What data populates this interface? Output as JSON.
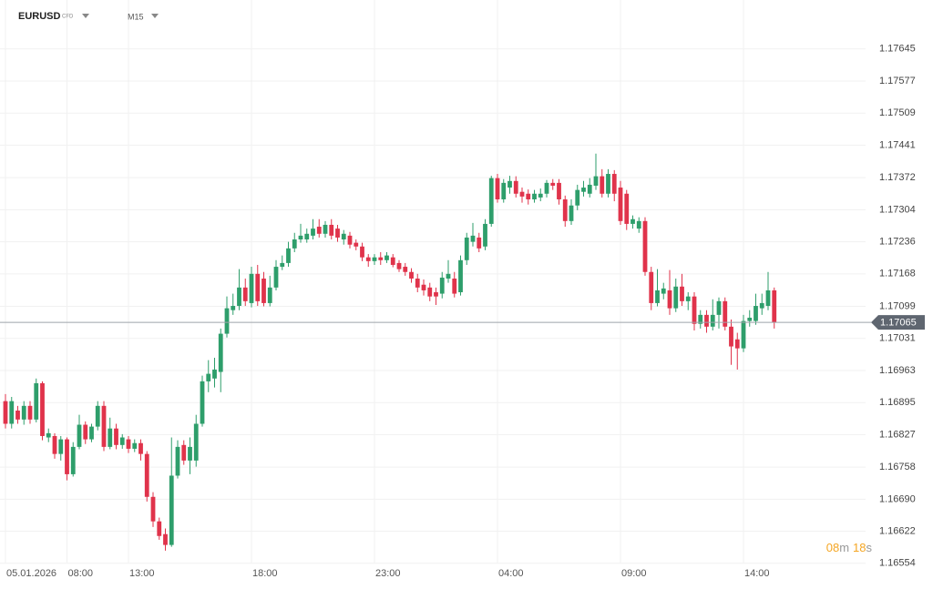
{
  "chart_data": {
    "type": "candlestick",
    "symbol": "EURUSD",
    "instrument_type": "CFD",
    "timeframe": "M15",
    "up_color": "#2e9e6b",
    "down_color": "#e0334b",
    "grid": true,
    "categories": [
      "05.01.2026",
      null,
      null,
      null,
      null,
      null,
      null,
      null,
      null,
      null,
      "08:00",
      null,
      null,
      null,
      null,
      null,
      null,
      null,
      null,
      null,
      "13:00",
      null,
      null,
      null,
      null,
      null,
      null,
      null,
      null,
      null,
      null,
      null,
      null,
      null,
      null,
      null,
      null,
      null,
      null,
      null,
      "18:00",
      null,
      null,
      null,
      null,
      null,
      null,
      null,
      null,
      null,
      null,
      null,
      null,
      null,
      null,
      null,
      null,
      null,
      null,
      null,
      "23:00",
      null,
      null,
      null,
      null,
      null,
      null,
      null,
      null,
      null,
      null,
      null,
      null,
      null,
      null,
      null,
      null,
      null,
      null,
      null,
      "04:00",
      null,
      null,
      null,
      null,
      null,
      null,
      null,
      null,
      null,
      null,
      null,
      null,
      null,
      null,
      null,
      null,
      null,
      null,
      null,
      "09:00",
      null,
      null,
      null,
      null,
      null,
      null,
      null,
      null,
      null,
      null,
      null,
      null,
      null,
      null,
      null,
      null,
      null,
      null,
      null,
      "14:00",
      null,
      null,
      null,
      null,
      null
    ],
    "open": [
      1.16898,
      1.1685,
      1.16878,
      1.16859,
      1.16888,
      1.16859,
      1.16936,
      1.16821,
      1.16824,
      1.16786,
      1.16817,
      1.16743,
      1.16801,
      1.16848,
      1.16817,
      1.16844,
      1.16888,
      1.16801,
      1.1684,
      1.16805,
      1.16817,
      1.16797,
      1.16809,
      1.16786,
      1.16695,
      1.16643,
      1.16616,
      1.16593,
      1.1674,
      1.16805,
      1.16772,
      1.16772,
      1.1685,
      1.1694,
      1.16946,
      1.1696,
      1.17041,
      1.17091,
      1.171,
      1.17139,
      1.17106,
      1.17168,
      1.17158,
      1.17106,
      1.17139,
      1.17183,
      1.17191,
      1.17222,
      1.17241,
      1.17241,
      1.17249,
      1.17268,
      1.17253,
      1.17272,
      1.17264,
      1.17241,
      1.17249,
      1.17234,
      1.17226,
      1.17203,
      1.17195,
      1.17203,
      1.17197,
      1.17203,
      1.17191,
      1.17183,
      1.17172,
      1.17158,
      1.17145,
      1.17139,
      1.17129,
      1.17126,
      1.17158,
      1.17158,
      1.17129,
      1.17197,
      1.17236,
      1.17245,
      1.17226,
      1.17274,
      1.17371,
      1.17326,
      1.17351,
      1.17365,
      1.17342,
      1.17338,
      1.17326,
      1.1733,
      1.17338,
      1.17361,
      1.17361,
      1.17326,
      1.1728,
      1.17313,
      1.17342,
      1.17338,
      1.17355,
      1.17375,
      1.17338,
      1.1738,
      1.17351,
      1.17338,
      1.17274,
      1.17264,
      1.1728,
      1.17172,
      1.17106,
      1.17126,
      1.17133,
      1.17095,
      1.17141,
      1.1711,
      1.1712,
      1.17062,
      1.17081,
      1.17056,
      1.17081,
      1.1711,
      1.17056,
      1.17029,
      1.1701,
      1.17068,
      1.17068,
      1.17095,
      1.171,
      1.17133
    ],
    "high": [
      1.16913,
      1.16907,
      1.16888,
      1.16898,
      1.16898,
      1.16946,
      1.1694,
      1.1684,
      1.1683,
      1.16824,
      1.16821,
      1.16811,
      1.16869,
      1.16855,
      1.1685,
      1.16898,
      1.16898,
      1.16863,
      1.1685,
      1.16828,
      1.16824,
      1.16817,
      1.16817,
      1.16792,
      1.16705,
      1.16651,
      1.16628,
      1.16821,
      1.16815,
      1.16815,
      1.16821,
      1.16869,
      1.16952,
      1.16985,
      1.1699,
      1.17052,
      1.1712,
      1.17126,
      1.17178,
      1.17158,
      1.17183,
      1.17187,
      1.17172,
      1.17164,
      1.17197,
      1.17207,
      1.17236,
      1.17255,
      1.17274,
      1.17264,
      1.17284,
      1.17284,
      1.1728,
      1.17284,
      1.17272,
      1.17261,
      1.17257,
      1.17241,
      1.17234,
      1.1721,
      1.1721,
      1.17214,
      1.17214,
      1.1721,
      1.17197,
      1.17191,
      1.1718,
      1.17168,
      1.17156,
      1.17149,
      1.17139,
      1.17172,
      1.17197,
      1.17172,
      1.17207,
      1.17255,
      1.17276,
      1.17255,
      1.17284,
      1.17376,
      1.1738,
      1.17369,
      1.17376,
      1.17375,
      1.17351,
      1.17347,
      1.17346,
      1.17349,
      1.17367,
      1.17369,
      1.17369,
      1.17334,
      1.17326,
      1.17357,
      1.17365,
      1.17371,
      1.17423,
      1.1739,
      1.1739,
      1.17388,
      1.17365,
      1.17346,
      1.17292,
      1.17288,
      1.17288,
      1.17183,
      1.17178,
      1.17149,
      1.17176,
      1.17158,
      1.17168,
      1.17129,
      1.17129,
      1.17091,
      1.17091,
      1.17114,
      1.17118,
      1.17118,
      1.17071,
      1.17043,
      1.17081,
      1.17091,
      1.17126,
      1.17126,
      1.17172,
      1.17139
    ],
    "low": [
      1.1684,
      1.1684,
      1.1685,
      1.16848,
      1.1685,
      1.16853,
      1.16815,
      1.16811,
      1.16776,
      1.16772,
      1.1673,
      1.16738,
      1.16796,
      1.16807,
      1.16811,
      1.16836,
      1.16792,
      1.16796,
      1.16796,
      1.16797,
      1.16788,
      1.1679,
      1.16772,
      1.16685,
      1.16631,
      1.16604,
      1.16581,
      1.16589,
      1.16734,
      1.16763,
      1.16743,
      1.16759,
      1.16844,
      1.16917,
      1.16927,
      1.16917,
      1.17033,
      1.17081,
      1.17091,
      1.171,
      1.17097,
      1.171,
      1.17099,
      1.17099,
      1.17133,
      1.17176,
      1.17183,
      1.17214,
      1.17234,
      1.17234,
      1.17241,
      1.17245,
      1.17245,
      1.17241,
      1.17236,
      1.1723,
      1.17222,
      1.17218,
      1.17195,
      1.17183,
      1.17187,
      1.17187,
      1.17191,
      1.17182,
      1.17172,
      1.17164,
      1.17149,
      1.17129,
      1.17122,
      1.1711,
      1.17102,
      1.17116,
      1.17149,
      1.17118,
      1.17122,
      1.17187,
      1.17226,
      1.17214,
      1.17218,
      1.17268,
      1.17319,
      1.17319,
      1.17338,
      1.1733,
      1.17319,
      1.17315,
      1.17319,
      1.17322,
      1.1733,
      1.17346,
      1.17315,
      1.17268,
      1.17272,
      1.17303,
      1.17332,
      1.1733,
      1.17346,
      1.1733,
      1.1733,
      1.17322,
      1.17272,
      1.17261,
      1.17264,
      1.17255,
      1.17164,
      1.17091,
      1.17099,
      1.17114,
      1.17081,
      1.17087,
      1.171,
      1.17091,
      1.17048,
      1.17052,
      1.17043,
      1.17048,
      1.17052,
      1.17048,
      1.16975,
      1.16965,
      1.17002,
      1.17056,
      1.1706,
      1.17081,
      1.17091,
      1.17052
    ],
    "close": [
      1.1685,
      1.16898,
      1.16859,
      1.16888,
      1.16859,
      1.16936,
      1.16824,
      1.1683,
      1.16786,
      1.16817,
      1.16743,
      1.16801,
      1.16848,
      1.16817,
      1.16844,
      1.16888,
      1.16801,
      1.1684,
      1.16805,
      1.16821,
      1.16797,
      1.16809,
      1.16786,
      1.16695,
      1.16643,
      1.16612,
      1.16593,
      1.1674,
      1.16801,
      1.16772,
      1.16801,
      1.1685,
      1.1694,
      1.16956,
      1.16965,
      1.17041,
      1.17095,
      1.171,
      1.17139,
      1.1711,
      1.17168,
      1.1711,
      1.17106,
      1.17139,
      1.17183,
      1.17191,
      1.17222,
      1.17241,
      1.17249,
      1.17253,
      1.17264,
      1.17253,
      1.17272,
      1.17249,
      1.17245,
      1.17253,
      1.1723,
      1.17226,
      1.17203,
      1.17195,
      1.17203,
      1.17197,
      1.17207,
      1.17187,
      1.17178,
      1.17172,
      1.17158,
      1.17139,
      1.17133,
      1.1712,
      1.1712,
      1.1716,
      1.17168,
      1.17126,
      1.17197,
      1.17245,
      1.17249,
      1.17222,
      1.17274,
      1.17371,
      1.17326,
      1.17361,
      1.17365,
      1.17338,
      1.17332,
      1.17326,
      1.17338,
      1.17338,
      1.17361,
      1.17355,
      1.17326,
      1.1728,
      1.17313,
      1.17346,
      1.17351,
      1.17357,
      1.17375,
      1.17338,
      1.1738,
      1.17338,
      1.1728,
      1.17274,
      1.17284,
      1.1728,
      1.17172,
      1.17106,
      1.17133,
      1.17137,
      1.17095,
      1.17141,
      1.1711,
      1.1712,
      1.17062,
      1.17081,
      1.17056,
      1.17081,
      1.1711,
      1.17056,
      1.17014,
      1.1701,
      1.17068,
      1.17075,
      1.171,
      1.17106,
      1.17133,
      1.17065
    ],
    "ylim": [
      1.16515,
      1.17745
    ],
    "yticks": [
      1.17645,
      1.17577,
      1.17509,
      1.17441,
      1.17372,
      1.17304,
      1.17236,
      1.17168,
      1.17099,
      1.17031,
      1.16963,
      1.16895,
      1.16827,
      1.16758,
      {
        "value": 1.1669,
        "label": "1.16690"
      },
      1.16622,
      1.16554
    ],
    "last_price": 1.17065,
    "countdown": [
      "08",
      "m",
      "18",
      "s"
    ]
  }
}
